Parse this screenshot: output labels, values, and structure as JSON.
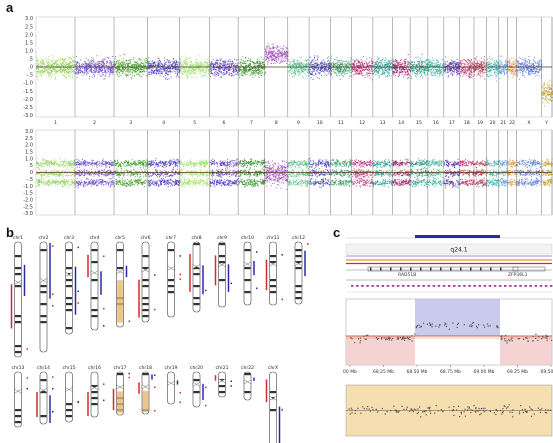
{
  "panels": {
    "a": {
      "letter": "a",
      "y_ticks": [
        "3.0",
        "2.5",
        "2.0",
        "1.5",
        "1.0",
        ".5",
        "0",
        "-.5",
        "-1.0",
        "-1.5",
        "-2.0",
        "-2.5",
        "-3.0"
      ],
      "chromosomes": [
        "1",
        "2",
        "3",
        "4",
        "5",
        "6",
        "7",
        "8",
        "9",
        "10",
        "11",
        "12",
        "13",
        "14",
        "15",
        "16",
        "17",
        "18",
        "19",
        "20",
        "21",
        "22",
        "X",
        "Y"
      ],
      "colors": [
        "#8fd15a",
        "#6f4fc9",
        "#3f9e2a",
        "#4b3fb8",
        "#9be06a",
        "#5a3fc0",
        "#2f8f28",
        "#a24fbf",
        "#57c08a",
        "#4848c0",
        "#3aa06a",
        "#b8327a",
        "#2b9f9a",
        "#9a1e68",
        "#2a9a80",
        "#3fb4a0",
        "#5a30b0",
        "#c8326a",
        "#b03a52",
        "#3ab0b0",
        "#5e9be0",
        "#e0943a",
        "#5a7ed8",
        "#c49a2a"
      ]
    },
    "b": {
      "letter": "b",
      "row1": [
        "chr1",
        "chr2",
        "chr3",
        "chr4",
        "chr5",
        "chr6",
        "chr7",
        "chr8",
        "chr9",
        "chr10",
        "chr11",
        "chr12"
      ],
      "row2": [
        "chr13",
        "chr14",
        "chr15",
        "chr16",
        "chr17",
        "chr18",
        "chr19",
        "chr20",
        "chr21",
        "chr22",
        "chrX"
      ]
    },
    "c": {
      "letter": "c",
      "band": "q24.1",
      "genes": [
        "RAD51B",
        "ZFP36L1"
      ],
      "x_ticks": [
        "00 Mb",
        "68.25 Mb",
        "68.50 Mb",
        "68.75 Mb",
        "69.00 Mb",
        "69.25 Mb",
        "69.50 Mb"
      ]
    }
  }
}
